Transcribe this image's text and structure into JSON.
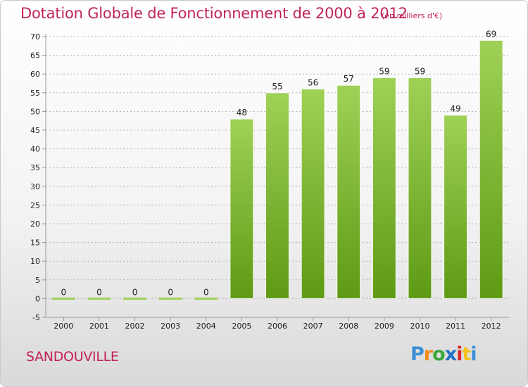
{
  "title": "Dotation Globale de Fonctionnement de 2000 à 2012",
  "subtitle": "(en milliers d'€)",
  "commune": "SANDOUVILLE",
  "logo": {
    "letters": [
      "P",
      "r",
      "o",
      "x",
      "i",
      "t",
      "i"
    ],
    "colors": [
      "#3a8fd6",
      "#f08a1a",
      "#3aa83a",
      "#1f6fc4",
      "#d8262e",
      "#f3c21a",
      "#3a8fd6"
    ]
  },
  "colors": {
    "bar_top": "#9fd157",
    "bar_bottom": "#5e9a14",
    "zero_bar": "#9fd157",
    "grid": "#b0b0b0",
    "text_accent": "#c2225a"
  },
  "chart_data": {
    "type": "bar",
    "categories": [
      "2000",
      "2001",
      "2002",
      "2003",
      "2004",
      "2005",
      "2006",
      "2007",
      "2008",
      "2009",
      "2010",
      "2011",
      "2012"
    ],
    "values": [
      0,
      0,
      0,
      0,
      0,
      48,
      55,
      56,
      57,
      59,
      59,
      49,
      69
    ],
    "ylim": [
      -5,
      70
    ],
    "yticks": [
      -5,
      0,
      5,
      10,
      15,
      20,
      25,
      30,
      35,
      40,
      45,
      50,
      55,
      60,
      65,
      70
    ],
    "grid": true,
    "grid_style": "dashed-horizontal",
    "xlabel": "",
    "ylabel": ""
  }
}
